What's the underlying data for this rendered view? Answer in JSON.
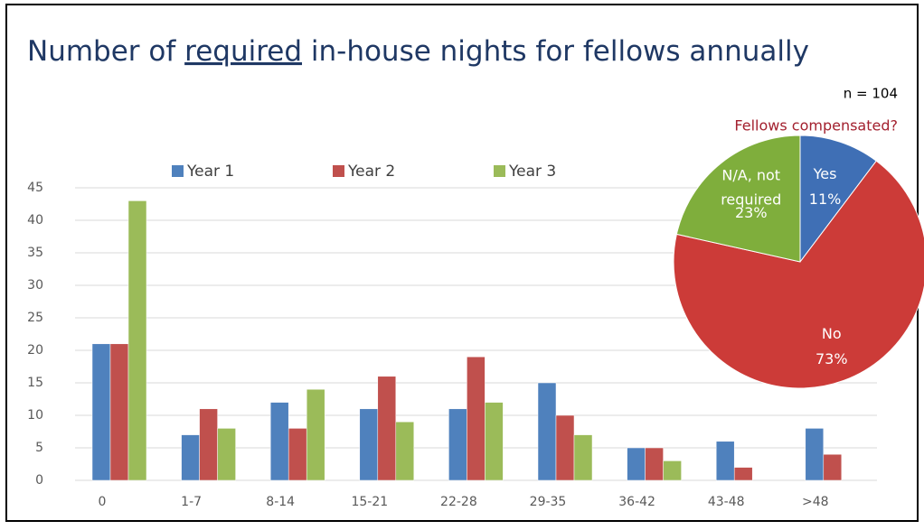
{
  "title": {
    "before": "Number of",
    "underlined": "required",
    "after": "in-house nights for fellows annually"
  },
  "annotation": "n = 104",
  "chart_data": [
    {
      "type": "bar",
      "categories": [
        "0",
        "1-7",
        "8-14",
        "15-21",
        "22-28",
        "29-35",
        "36-42",
        "43-48",
        ">48"
      ],
      "series": [
        {
          "name": "Year 1",
          "color": "#4f81bd",
          "values": [
            21,
            7,
            12,
            11,
            11,
            15,
            5,
            6,
            8
          ]
        },
        {
          "name": "Year 2",
          "color": "#c0504d",
          "values": [
            21,
            11,
            8,
            16,
            19,
            10,
            5,
            2,
            4
          ]
        },
        {
          "name": "Year 3",
          "color": "#9bbb59",
          "values": [
            43,
            8,
            14,
            9,
            12,
            7,
            3,
            0,
            0
          ]
        }
      ],
      "ylim": [
        0,
        45
      ],
      "yticks": [
        0,
        5,
        10,
        15,
        20,
        25,
        30,
        35,
        40,
        45
      ],
      "grid": true,
      "legend": "top"
    },
    {
      "type": "pie",
      "title": "Fellows compensated?",
      "categories": [
        "Yes",
        "No",
        "N/A, not required"
      ],
      "values": [
        11,
        73,
        23
      ],
      "value_labels": [
        "11%",
        "73%",
        "23%"
      ],
      "colors": [
        "#3f6fb5",
        "#cc3b38",
        "#7fae3c"
      ]
    }
  ]
}
